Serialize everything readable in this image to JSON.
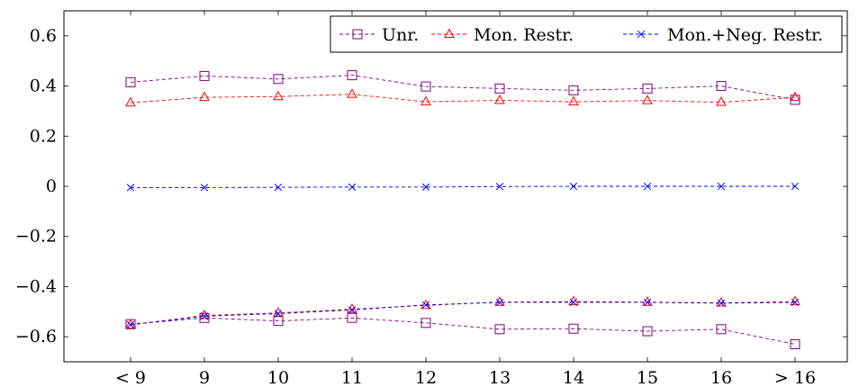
{
  "chart_data": {
    "type": "line",
    "categories": [
      "< 9",
      "9",
      "10",
      "11",
      "12",
      "13",
      "14",
      "15",
      "16",
      "> 16"
    ],
    "ylim": [
      -0.7,
      0.7
    ],
    "yticks": [
      -0.6,
      -0.4,
      -0.2,
      0,
      0.2,
      0.4,
      0.6
    ],
    "ytick_labels": [
      "−0.6",
      "−0.4",
      "−0.2",
      "0",
      "0.2",
      "0.4",
      "0.6"
    ],
    "grid": false,
    "legend_position": "top-right",
    "series": [
      {
        "name": "Unr.",
        "color": "#800080",
        "marker": "square",
        "upper": [
          0.415,
          0.44,
          0.428,
          0.443,
          0.398,
          0.39,
          0.383,
          0.39,
          0.4,
          0.345
        ],
        "lower": [
          -0.55,
          -0.525,
          -0.537,
          -0.525,
          -0.545,
          -0.57,
          -0.568,
          -0.578,
          -0.57,
          -0.63
        ]
      },
      {
        "name": "Mon. Restr.",
        "color": "#ff0000",
        "marker": "triangle",
        "upper": [
          0.333,
          0.355,
          0.358,
          0.367,
          0.337,
          0.343,
          0.337,
          0.342,
          0.335,
          0.355
        ],
        "lower": [
          -0.553,
          -0.515,
          -0.505,
          -0.49,
          -0.475,
          -0.462,
          -0.46,
          -0.462,
          -0.465,
          -0.46
        ]
      },
      {
        "name": "Mon.+Neg. Restr.",
        "color": "#0000ff",
        "marker": "cross",
        "upper": [
          -0.005,
          -0.005,
          -0.004,
          -0.003,
          -0.003,
          -0.001,
          0,
          0,
          0,
          0
        ],
        "lower": [
          -0.552,
          -0.518,
          -0.508,
          -0.493,
          -0.473,
          -0.463,
          -0.463,
          -0.463,
          -0.466,
          -0.463
        ]
      }
    ]
  }
}
